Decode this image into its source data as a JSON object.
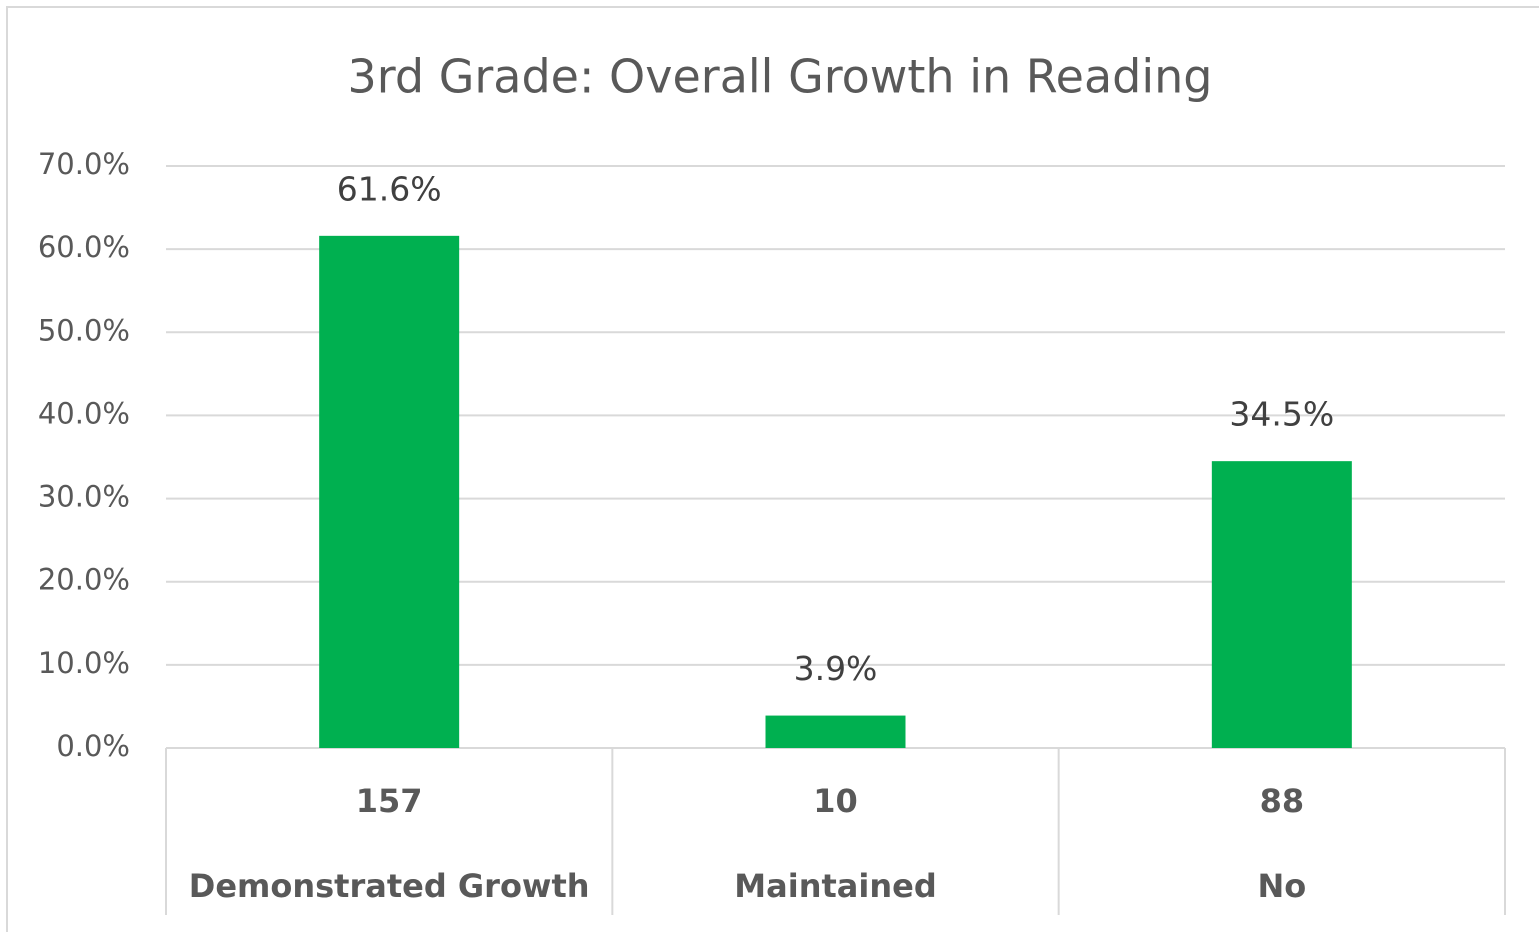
{
  "chart_data": {
    "type": "bar",
    "title": "3rd Grade:  Overall Growth in Reading",
    "categories": [
      "Demonstrated Growth",
      "Maintained",
      "No"
    ],
    "category_counts": [
      157,
      10,
      88
    ],
    "values": [
      61.6,
      3.9,
      34.5
    ],
    "value_labels": [
      "61.6%",
      "3.9%",
      "34.5%"
    ],
    "color": "#00b050",
    "ylim": [
      0,
      70
    ],
    "yticks": [
      {
        "value": 0,
        "label": "0.0%"
      },
      {
        "value": 10,
        "label": "10.0%"
      },
      {
        "value": 20,
        "label": "20.0%"
      },
      {
        "value": 30,
        "label": "30.0%"
      },
      {
        "value": 40,
        "label": "40.0%"
      },
      {
        "value": 50,
        "label": "50.0%"
      },
      {
        "value": 60,
        "label": "60.0%"
      },
      {
        "value": 70,
        "label": "70.0%"
      }
    ],
    "grid": true
  }
}
